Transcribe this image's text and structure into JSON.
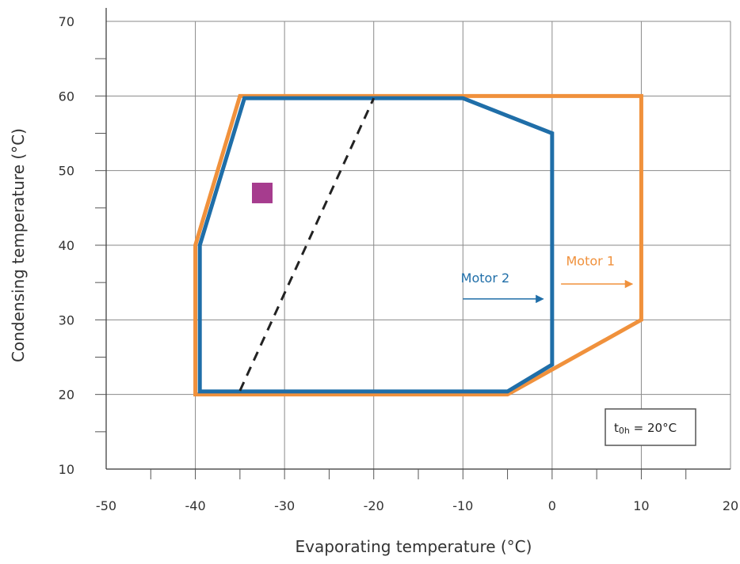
{
  "chart_data": {
    "type": "line",
    "xlabel": "Evaporating temperature (°C)",
    "ylabel": "Condensing temperature (°C)",
    "xlim": [
      -50,
      20
    ],
    "ylim": [
      10,
      70
    ],
    "x_ticks": [
      -50,
      -40,
      -30,
      -20,
      -10,
      0,
      10,
      20
    ],
    "x_tick_labels": [
      "-50",
      "-40",
      "-30",
      "-20",
      "-10",
      "0",
      "10",
      "20"
    ],
    "y_ticks": [
      10,
      20,
      30,
      40,
      50,
      60,
      70
    ],
    "y_tick_labels": [
      "10",
      "20",
      "30",
      "40",
      "50",
      "60",
      "70"
    ],
    "x_minor_step": 5,
    "y_minor_step": 5,
    "grid": true,
    "series": [
      {
        "name": "Motor 1",
        "color": "#F0913C",
        "closed": true,
        "x": [
          -35,
          10,
          10,
          -5,
          -40,
          -40
        ],
        "y": [
          60,
          60,
          30,
          20,
          20,
          40
        ]
      },
      {
        "name": "Motor 2",
        "color": "#1F6EA8",
        "closed": true,
        "x": [
          -34.5,
          -10,
          0,
          0,
          -5,
          -39.5,
          -39.5
        ],
        "y": [
          59.7,
          59.7,
          55,
          24,
          20.4,
          20.4,
          40
        ]
      },
      {
        "name": "",
        "color": "#222222",
        "style": "dashed",
        "closed": false,
        "x": [
          -35,
          -20
        ],
        "y": [
          20.5,
          59.7
        ]
      }
    ],
    "annotations": {
      "motor1_label": "Motor 1",
      "motor2_label": "Motor 2",
      "note_prefix": "t",
      "note_subscript": "0h",
      "note_suffix": " = 20°C",
      "marker_color": "#A63C8E",
      "marker_x": -32.5,
      "marker_y": 47
    }
  }
}
